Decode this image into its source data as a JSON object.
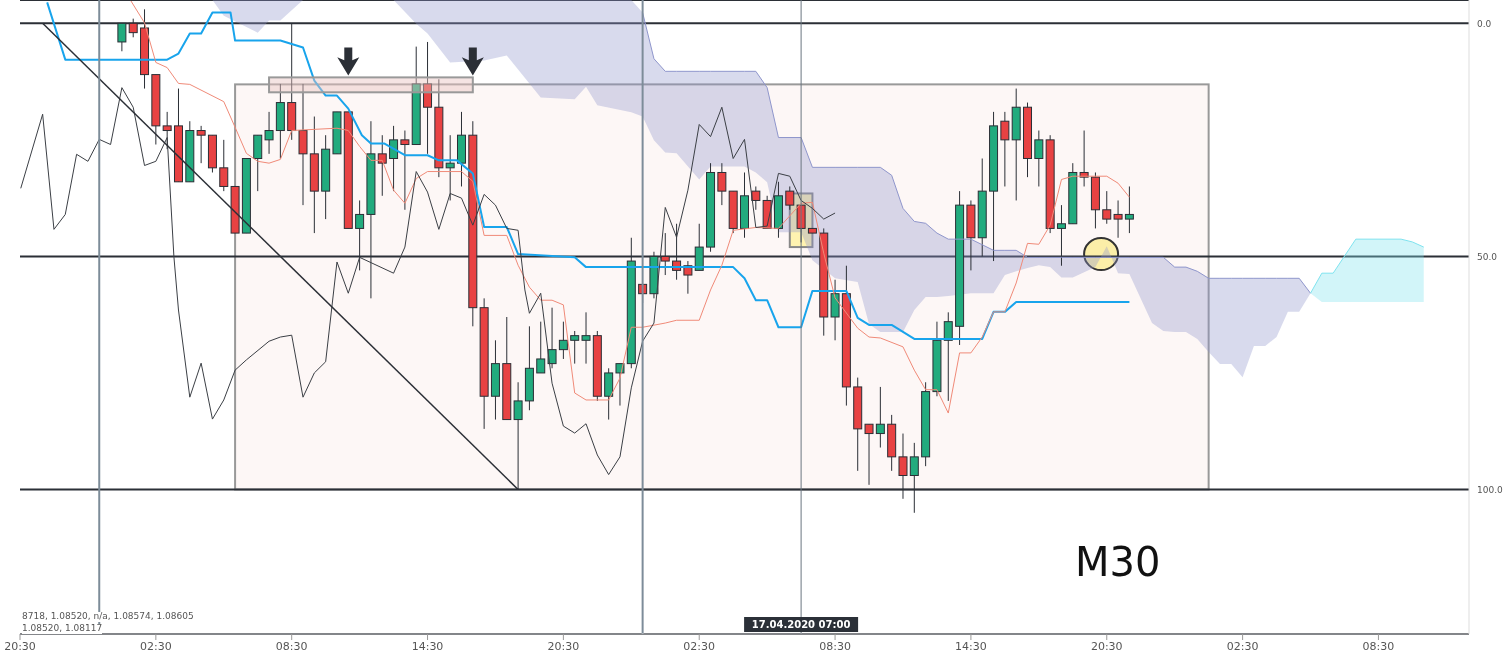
{
  "chart_data": {
    "type": "candlestick",
    "x": [
      "2020-04-16T01:00",
      "2020-04-16T01:30",
      "2020-04-16T02:00",
      "2020-04-16T02:30",
      "2020-04-16T03:00",
      "2020-04-16T03:30",
      "2020-04-16T04:00",
      "2020-04-16T04:30",
      "2020-04-16T05:00",
      "2020-04-16T05:30",
      "2020-04-16T06:00",
      "2020-04-16T06:30",
      "2020-04-16T07:00",
      "2020-04-16T07:30",
      "2020-04-16T08:00",
      "2020-04-16T08:30",
      "2020-04-16T09:00",
      "2020-04-16T09:30",
      "2020-04-16T10:00",
      "2020-04-16T10:30",
      "2020-04-16T11:00",
      "2020-04-16T11:30",
      "2020-04-16T12:00",
      "2020-04-16T12:30",
      "2020-04-16T13:00",
      "2020-04-16T13:30",
      "2020-04-16T14:00",
      "2020-04-16T14:30",
      "2020-04-16T15:00",
      "2020-04-16T15:30",
      "2020-04-16T16:00",
      "2020-04-16T16:30",
      "2020-04-16T17:00",
      "2020-04-16T17:30",
      "2020-04-16T18:00",
      "2020-04-16T18:30",
      "2020-04-16T19:00",
      "2020-04-16T19:30",
      "2020-04-16T20:00",
      "2020-04-16T20:30",
      "2020-04-16T21:00",
      "2020-04-16T21:30",
      "2020-04-16T22:00",
      "2020-04-16T22:30",
      "2020-04-16T23:00",
      "2020-04-16T23:30",
      "2020-04-17T00:00",
      "2020-04-17T00:30",
      "2020-04-17T01:00",
      "2020-04-17T01:30",
      "2020-04-17T02:00",
      "2020-04-17T02:30",
      "2020-04-17T03:00",
      "2020-04-17T03:30",
      "2020-04-17T04:00",
      "2020-04-17T04:30",
      "2020-04-17T05:00",
      "2020-04-17T05:30",
      "2020-04-17T06:00",
      "2020-04-17T06:30",
      "2020-04-17T07:00",
      "2020-04-17T07:30",
      "2020-04-17T08:00",
      "2020-04-17T08:30",
      "2020-04-17T09:00",
      "2020-04-17T09:30",
      "2020-04-17T10:00",
      "2020-04-17T10:30",
      "2020-04-17T11:00",
      "2020-04-17T11:30",
      "2020-04-17T12:00",
      "2020-04-17T12:30",
      "2020-04-17T13:00",
      "2020-04-17T13:30",
      "2020-04-17T14:00",
      "2020-04-17T14:30",
      "2020-04-17T15:00",
      "2020-04-17T15:30",
      "2020-04-17T16:00",
      "2020-04-17T16:30",
      "2020-04-17T17:00",
      "2020-04-17T17:30",
      "2020-04-17T18:00",
      "2020-04-17T18:30",
      "2020-04-17T19:00",
      "2020-04-17T19:30",
      "2020-04-17T20:00",
      "2020-04-17T20:30",
      "2020-04-17T21:00",
      "2020-04-17T21:30"
    ],
    "ohlc": [
      [
        4,
        6,
        0,
        0
      ],
      [
        0,
        3,
        -1,
        2
      ],
      [
        1,
        14,
        -3,
        11
      ],
      [
        11,
        26,
        11,
        22
      ],
      [
        22,
        27,
        19,
        23
      ],
      [
        22,
        34,
        14,
        34
      ],
      [
        34,
        34,
        21,
        23
      ],
      [
        23,
        30,
        22,
        24
      ],
      [
        24,
        32,
        24,
        31
      ],
      [
        31,
        36,
        25,
        35
      ],
      [
        35,
        45,
        35,
        45
      ],
      [
        45,
        45,
        29,
        29
      ],
      [
        29,
        36,
        24,
        24
      ],
      [
        25,
        28,
        19,
        23
      ],
      [
        23,
        29,
        13,
        17
      ],
      [
        17,
        25,
        0,
        23
      ],
      [
        23,
        39,
        13,
        28
      ],
      [
        28,
        45,
        20,
        36
      ],
      [
        36,
        42,
        24,
        27
      ],
      [
        28,
        28,
        19,
        19
      ],
      [
        19,
        44,
        19,
        44
      ],
      [
        44,
        53,
        38,
        41
      ],
      [
        41,
        59,
        21,
        28
      ],
      [
        28,
        37,
        24,
        30
      ],
      [
        29,
        36,
        22,
        25
      ],
      [
        25,
        40,
        23,
        26
      ],
      [
        26,
        26,
        5,
        13
      ],
      [
        13,
        28,
        4,
        18
      ],
      [
        18,
        33,
        12,
        31
      ],
      [
        31,
        38,
        24,
        30
      ],
      [
        30,
        35,
        19,
        24
      ],
      [
        24,
        65,
        21,
        61
      ],
      [
        61,
        87,
        59,
        80
      ],
      [
        80,
        85,
        68,
        73
      ],
      [
        73,
        85,
        63,
        85
      ],
      [
        85,
        100,
        77,
        81
      ],
      [
        81,
        83,
        65,
        74
      ],
      [
        75,
        75,
        64,
        72
      ],
      [
        73,
        74,
        61,
        70
      ],
      [
        70,
        72,
        64,
        68
      ],
      [
        68,
        73,
        66,
        67
      ],
      [
        68,
        73,
        62,
        67
      ],
      [
        67,
        81,
        66,
        80
      ],
      [
        80,
        85,
        74,
        75
      ],
      [
        75,
        82,
        73,
        73
      ],
      [
        73,
        74,
        46,
        51
      ],
      [
        56,
        60,
        56,
        58
      ],
      [
        58,
        59,
        49,
        50
      ],
      [
        50,
        54,
        45,
        51
      ],
      [
        51,
        55,
        43,
        53
      ],
      [
        52,
        58,
        51,
        54
      ],
      [
        53,
        53,
        43,
        48
      ],
      [
        48,
        49,
        30,
        32
      ],
      [
        32,
        39,
        30,
        36
      ],
      [
        36,
        45,
        36,
        44
      ],
      [
        44,
        46,
        32,
        37
      ],
      [
        36,
        40,
        35,
        38
      ],
      [
        38,
        44,
        37,
        44
      ],
      [
        44,
        46,
        34,
        37
      ],
      [
        36,
        40,
        35,
        39
      ],
      [
        39,
        47,
        39,
        44
      ],
      [
        44,
        45,
        44,
        45
      ],
      [
        45,
        67,
        44,
        63
      ],
      [
        63,
        68,
        55,
        58
      ],
      [
        58,
        82,
        52,
        78
      ],
      [
        78,
        96,
        76,
        87
      ],
      [
        86,
        99,
        86,
        88
      ],
      [
        88,
        91,
        78,
        86
      ],
      [
        86,
        96,
        84,
        93
      ],
      [
        93,
        102,
        88,
        97
      ],
      [
        97,
        105,
        90,
        93
      ],
      [
        93,
        95,
        77,
        79
      ],
      [
        79,
        80,
        64,
        68
      ],
      [
        68,
        81,
        62,
        64
      ],
      [
        65,
        69,
        36,
        39
      ],
      [
        39,
        53,
        38,
        46
      ],
      [
        46,
        50,
        29,
        36
      ],
      [
        36,
        51,
        19,
        22
      ],
      [
        21,
        35,
        19,
        25
      ],
      [
        25,
        38,
        14,
        18
      ],
      [
        18,
        33,
        17,
        29
      ],
      [
        29,
        35,
        23,
        25
      ],
      [
        25,
        45,
        24,
        44
      ],
      [
        44,
        52,
        39,
        43
      ],
      [
        43,
        43,
        30,
        32
      ],
      [
        32,
        35,
        23,
        33
      ],
      [
        33,
        44,
        32,
        40
      ],
      [
        40,
        43,
        36,
        42
      ],
      [
        41,
        46,
        38,
        42
      ],
      [
        42,
        45,
        35,
        41
      ]
    ],
    "colors": [
      "#22ab7e",
      "#e84243",
      "#e84243",
      "#e84243",
      "#e84243",
      "#e84243",
      "#22ab7e",
      "#e84243",
      "#e84243",
      "#e84243",
      "#e84243",
      "#22ab7e",
      "#22ab7e",
      "#22ab7e",
      "#22ab7e",
      "#e84243",
      "#e84243",
      "#e84243",
      "#22ab7e",
      "#22ab7e",
      "#e84243",
      "#22ab7e",
      "#22ab7e",
      "#e84243",
      "#22ab7e",
      "#e84243",
      "#22ab7e",
      "#e84243",
      "#e84243",
      "#22ab7e",
      "#22ab7e",
      "#e84243",
      "#e84243",
      "#22ab7e",
      "#e84243",
      "#22ab7e",
      "#22ab7e",
      "#22ab7e",
      "#22ab7e",
      "#22ab7e",
      "#22ab7e",
      "#22ab7e",
      "#e84243",
      "#22ab7e",
      "#22ab7e",
      "#22ab7e",
      "#e84243",
      "#22ab7e",
      "#e84243",
      "#e84243",
      "#e84243",
      "#22ab7e",
      "#22ab7e",
      "#e84243",
      "#e84243",
      "#22ab7e",
      "#e84243",
      "#e84243",
      "#22ab7e",
      "#e84243",
      "#e84243",
      "#e84243",
      "#e84243",
      "#22ab7e",
      "#e84243",
      "#e84243",
      "#e84243",
      "#22ab7e",
      "#e84243",
      "#e84243",
      "#22ab7e",
      "#22ab7e",
      "#22ab7e",
      "#22ab7e",
      "#22ab7e",
      "#e84243",
      "#22ab7e",
      "#22ab7e",
      "#e84243",
      "#22ab7e",
      "#e84243",
      "#22ab7e",
      "#e84243",
      "#22ab7e",
      "#22ab7e",
      "#e84243",
      "#e84243",
      "#e84243",
      "#e84243",
      "#22ab7e"
    ],
    "series": [
      {
        "type": "line",
        "color": "#8f96cc",
        "x": [
          "2020-04-16T05:00",
          "2020-04-16T05:30",
          "2020-04-16T07:00",
          "2020-04-16T07:30",
          "2020-04-16T08:00",
          "2020-04-16T09:00",
          "2020-04-16T13:00",
          "2020-04-16T14:00",
          "2020-04-16T14:30",
          "2020-04-16T15:30",
          "2020-04-16T17:00",
          "2020-04-16T18:00",
          "2020-04-16T19:00",
          "2020-04-16T19:30",
          "2020-04-16T21:00",
          "2020-04-16T21:30",
          "2020-04-16T22:00",
          "2020-04-16T23:30",
          "2020-04-17T00:00",
          "2020-04-17T00:30",
          "2020-04-17T01:00",
          "2020-04-17T01:30",
          "2020-04-17T02:30",
          "2020-04-17T03:00",
          "2020-04-17T04:30",
          "2020-04-17T05:00",
          "2020-04-17T05:30",
          "2020-04-17T06:00",
          "2020-04-17T07:00",
          "2020-04-17T07:30",
          "2020-04-17T08:30",
          "2020-04-17T09:30",
          "2020-04-17T10:00",
          "2020-04-17T10:30",
          "2020-04-17T11:00",
          "2020-04-17T11:30",
          "2020-04-17T12:00",
          "2020-04-17T12:30",
          "2020-04-17T13:00",
          "2020-04-17T13:30",
          "2020-04-17T14:30",
          "2020-04-17T15:30",
          "2020-04-17T16:00",
          "2020-04-17T16:30",
          "2020-04-17T17:00",
          "2020-04-17T17:30",
          "2020-04-17T18:00",
          "2020-04-17T18:30",
          "2020-04-17T19:00",
          "2020-04-17T20:00",
          "2020-04-17T20:30",
          "2020-04-17T21:00",
          "2020-04-17T21:30",
          "2020-04-17T22:30",
          "2020-04-17T23:00",
          "2020-04-17T23:30",
          "2020-04-18T00:00",
          "2020-04-18T00:30",
          "2020-04-18T01:00",
          "2020-04-18T01:30",
          "2020-04-18T02:00",
          "2020-04-18T02:30",
          "2020-04-18T03:00",
          "2020-04-18T03:30",
          "2020-04-18T04:00",
          "2020-04-18T04:30",
          "2020-04-18T05:00",
          "2020-04-18T05:30"
        ],
        "lower": [
          -5,
          -1.6,
          2,
          -0.6,
          -0.6,
          -5,
          -5,
          0.1,
          2.2,
          8.4,
          8,
          6.9,
          12.9,
          15.9,
          16.3,
          13.6,
          17.6,
          19.1,
          20,
          25.1,
          27.7,
          27.9,
          33.5,
          30.7,
          30.7,
          32,
          34.1,
          44.8,
          44.8,
          50.8,
          54.7,
          55.5,
          64.5,
          66.2,
          66.2,
          66.2,
          61.5,
          58.7,
          58.7,
          58.5,
          57.9,
          57.9,
          54,
          53.2,
          52.5,
          51.9,
          52.3,
          54.5,
          54.5,
          52.3,
          47.8,
          53.6,
          53.8,
          64.3,
          66,
          66.2,
          66.2,
          67.7,
          70.5,
          73.1,
          73.1,
          75.9,
          69.2,
          69.2,
          67.3,
          61.9,
          61.9,
          57.9
        ],
        "upper": [
          -5,
          -5,
          -5,
          -5,
          -5,
          -5,
          -5,
          -5,
          -5,
          -5,
          -5,
          -5,
          -5,
          -5,
          -5,
          -5,
          -5,
          -5,
          -2.3,
          7.6,
          10.3,
          10.3,
          10.3,
          10.3,
          10.3,
          10.3,
          13.8,
          24.5,
          24.5,
          30.9,
          30.9,
          30.9,
          30.9,
          30.9,
          32.6,
          39.7,
          42.5,
          42.9,
          45,
          46.3,
          46.3,
          48.7,
          48.7,
          48.7,
          50.2,
          50.2,
          50.2,
          50.2,
          50.2,
          50.2,
          50.2,
          50.2,
          50.2,
          50.2,
          50.2,
          52.3,
          52.3,
          53.2,
          54.7,
          54.7,
          54.7,
          54.7,
          54.7,
          54.7,
          54.7,
          54.7,
          54.7,
          57.9
        ],
        "values": [
          null,
          null,
          null,
          null,
          null,
          null,
          null,
          null,
          null,
          null,
          null,
          null,
          null,
          null,
          null,
          null,
          null,
          null,
          -2.3,
          7.6,
          10.3,
          10.3,
          10.3,
          10.3,
          10.3,
          10.3,
          13.8,
          24.5,
          24.5,
          30.9,
          30.9,
          30.9,
          30.9,
          30.9,
          32.6,
          39.7,
          42.5,
          42.9,
          45,
          46.3,
          46.3,
          48.7,
          48.7,
          48.7,
          50.2,
          50.2,
          50.2,
          50.2,
          50.2,
          50.2,
          50.2,
          50.2,
          50.2,
          50.2,
          50.2,
          52.3,
          52.3,
          53.2,
          54.7,
          54.7,
          54.7,
          54.7,
          54.7,
          54.7,
          54.7,
          54.7,
          54.7,
          57.9
        ]
      },
      {
        "type": "line",
        "color": "#7fe3ef",
        "x": [
          "2020-04-18T05:30",
          "2020-04-18T06:00",
          "2020-04-18T06:30",
          "2020-04-18T07:30",
          "2020-04-18T09:30",
          "2020-04-18T10:00",
          "2020-04-18T10:30"
        ],
        "lower": [
          57.9,
          59.8,
          59.8,
          59.8,
          59.8,
          59.8,
          59.8
        ],
        "upper": [
          57.9,
          53.6,
          53.6,
          46.3,
          46.3,
          46.9,
          48
        ],
        "values": [
          57.9,
          53.6,
          53.6,
          46.3,
          46.3,
          46.9,
          48
        ]
      },
      {
        "type": "line",
        "color": "#18a4ec",
        "x": [
          "2020-04-15T21:42",
          "2020-04-15T22:30",
          "2020-04-16T03:00",
          "2020-04-16T03:30",
          "2020-04-16T04:00",
          "2020-04-16T04:30",
          "2020-04-16T05:00",
          "2020-04-16T05:48",
          "2020-04-16T06:00",
          "2020-04-16T08:00",
          "2020-04-16T09:00",
          "2020-04-16T09:30",
          "2020-04-16T10:00",
          "2020-04-16T10:30",
          "2020-04-16T11:00",
          "2020-04-16T11:36",
          "2020-04-16T12:00",
          "2020-04-16T12:36",
          "2020-04-16T13:30",
          "2020-04-16T14:30",
          "2020-04-16T15:00",
          "2020-04-16T15:48",
          "2020-04-16T16:30",
          "2020-04-16T17:00",
          "2020-04-16T18:00",
          "2020-04-16T18:30",
          "2020-04-16T21:00",
          "2020-04-16T21:30",
          "2020-04-17T04:00",
          "2020-04-17T04:30",
          "2020-04-17T05:00",
          "2020-04-17T05:30",
          "2020-04-17T06:00",
          "2020-04-17T07:00",
          "2020-04-17T07:30",
          "2020-04-17T09:00",
          "2020-04-17T09:30",
          "2020-04-17T10:00",
          "2020-04-17T11:00",
          "2020-04-17T12:00",
          "2020-04-17T15:00",
          "2020-04-17T15:30",
          "2020-04-17T16:00",
          "2020-04-17T16:30",
          "2020-04-17T21:30"
        ],
        "values": [
          -4.5,
          7.8,
          7.8,
          6.5,
          2.2,
          2.2,
          -2.3,
          -2.3,
          3.7,
          3.7,
          5.2,
          12.3,
          15.5,
          15.5,
          18.3,
          24,
          25.8,
          25.8,
          28.3,
          28.3,
          29.4,
          29.4,
          32.2,
          43.7,
          43.7,
          49.5,
          50.2,
          52.3,
          52.3,
          54.7,
          59.4,
          59.4,
          65.2,
          65.2,
          57.4,
          57.4,
          63.2,
          64.7,
          64.7,
          67.7,
          67.7,
          61.9,
          61.9,
          59.8,
          59.8
        ]
      },
      {
        "type": "line",
        "color": "#f08a78",
        "x": [
          "2020-04-16T01:24",
          "2020-04-16T02:00",
          "2020-04-16T02:30",
          "2020-04-16T03:00",
          "2020-04-16T03:30",
          "2020-04-16T04:00",
          "2020-04-16T05:30",
          "2020-04-16T06:00",
          "2020-04-16T06:30",
          "2020-04-16T07:00",
          "2020-04-16T07:30",
          "2020-04-16T08:00",
          "2020-04-16T08:30",
          "2020-04-16T10:30",
          "2020-04-16T11:00",
          "2020-04-16T11:30",
          "2020-04-16T12:00",
          "2020-04-16T12:30",
          "2020-04-16T13:00",
          "2020-04-16T13:30",
          "2020-04-16T14:00",
          "2020-04-16T14:30",
          "2020-04-16T16:00",
          "2020-04-16T16:30",
          "2020-04-16T17:00",
          "2020-04-16T18:00",
          "2020-04-16T18:30",
          "2020-04-16T19:00",
          "2020-04-16T19:30",
          "2020-04-16T20:00",
          "2020-04-16T20:30",
          "2020-04-16T21:00",
          "2020-04-16T21:30",
          "2020-04-16T22:30",
          "2020-04-16T23:00",
          "2020-04-16T23:30",
          "2020-04-17T00:00",
          "2020-04-17T01:00",
          "2020-04-17T01:30",
          "2020-04-17T02:30",
          "2020-04-17T03:00",
          "2020-04-17T03:30",
          "2020-04-17T04:00",
          "2020-04-17T05:00",
          "2020-04-17T06:00",
          "2020-04-17T07:00",
          "2020-04-17T07:30",
          "2020-04-17T08:00",
          "2020-04-17T08:30",
          "2020-04-17T09:30",
          "2020-04-17T10:00",
          "2020-04-17T10:30",
          "2020-04-17T11:30",
          "2020-04-17T12:00",
          "2020-04-17T12:30",
          "2020-04-17T13:00",
          "2020-04-17T13:30",
          "2020-04-17T14:00",
          "2020-04-17T14:30",
          "2020-04-17T15:00",
          "2020-04-17T15:30",
          "2020-04-17T16:00",
          "2020-04-17T16:30",
          "2020-04-17T17:00",
          "2020-04-17T17:30",
          "2020-04-17T18:00",
          "2020-04-17T18:30",
          "2020-04-17T19:00",
          "2020-04-17T20:30",
          "2020-04-17T21:00",
          "2020-04-17T21:30"
        ],
        "values": [
          -4.8,
          -0.1,
          8.4,
          9.5,
          12.9,
          13.1,
          16.8,
          22.3,
          27.9,
          29.6,
          30,
          29.2,
          23,
          22.5,
          23,
          26.4,
          29.4,
          29.4,
          35.8,
          38.6,
          33.3,
          31.8,
          31.8,
          33.9,
          45.5,
          45.5,
          51.9,
          56.6,
          59.4,
          59.4,
          60.4,
          79.3,
          80.8,
          80.8,
          76.1,
          65.2,
          65.2,
          64.3,
          63.7,
          63.7,
          57.2,
          51.9,
          44.4,
          43.8,
          44,
          38.6,
          38.4,
          49.3,
          58.9,
          65.4,
          67.3,
          67.5,
          69.4,
          74.4,
          78.6,
          78.6,
          83.6,
          70.7,
          70.7,
          67.3,
          61.9,
          61.9,
          55.7,
          47.2,
          47.4,
          43.3,
          33.5,
          32.8,
          32.8,
          34.3,
          37.3
        ]
      },
      {
        "type": "line",
        "color": "#3b3f45",
        "x": [
          "2020-04-15T20:32",
          "2020-04-15T21:30",
          "2020-04-15T22:00",
          "2020-04-15T22:30",
          "2020-04-15T23:00",
          "2020-04-15T23:30",
          "2020-04-16T00:00",
          "2020-04-16T00:30",
          "2020-04-16T01:00",
          "2020-04-16T01:30",
          "2020-04-16T02:00",
          "2020-04-16T02:30",
          "2020-04-16T03:00",
          "2020-04-16T03:18",
          "2020-04-16T03:30",
          "2020-04-16T04:00",
          "2020-04-16T04:30",
          "2020-04-16T05:00",
          "2020-04-16T05:30",
          "2020-04-16T06:00",
          "2020-04-16T06:30",
          "2020-04-16T07:30",
          "2020-04-16T08:00",
          "2020-04-16T08:30",
          "2020-04-16T09:00",
          "2020-04-16T09:30",
          "2020-04-16T10:00",
          "2020-04-16T10:30",
          "2020-04-16T11:00",
          "2020-04-16T11:30",
          "2020-04-16T13:00",
          "2020-04-16T13:30",
          "2020-04-16T14:00",
          "2020-04-16T14:30",
          "2020-04-16T15:00",
          "2020-04-16T15:30",
          "2020-04-16T16:00",
          "2020-04-16T16:30",
          "2020-04-16T17:00",
          "2020-04-16T17:30",
          "2020-04-16T18:00",
          "2020-04-16T18:30",
          "2020-04-16T18:48",
          "2020-04-16T19:00",
          "2020-04-16T19:30",
          "2020-04-16T20:00",
          "2020-04-16T20:30",
          "2020-04-16T21:00",
          "2020-04-16T21:30",
          "2020-04-16T22:00",
          "2020-04-16T22:30",
          "2020-04-16T23:00",
          "2020-04-16T23:30",
          "2020-04-17T00:00",
          "2020-04-17T00:30",
          "2020-04-17T01:00",
          "2020-04-17T01:30",
          "2020-04-17T02:00",
          "2020-04-17T02:30",
          "2020-04-17T03:00",
          "2020-04-17T03:30",
          "2020-04-17T04:00",
          "2020-04-17T04:30",
          "2020-04-17T05:00",
          "2020-04-17T05:30",
          "2020-04-17T06:00",
          "2020-04-17T06:30",
          "2020-04-17T07:00",
          "2020-04-17T07:30",
          "2020-04-17T08:00",
          "2020-04-17T08:30"
        ],
        "values": [
          35.4,
          19.5,
          44.2,
          41,
          28.1,
          29.6,
          24.9,
          26,
          13.8,
          18,
          30.5,
          29.6,
          24.5,
          50.2,
          61.5,
          80.2,
          72.9,
          84.9,
          80.8,
          74.4,
          72.2,
          68.2,
          67.3,
          66.9,
          80.2,
          75,
          72.6,
          51.2,
          57.9,
          50.2,
          53.6,
          48,
          31.8,
          36.2,
          44.2,
          36.5,
          37.5,
          43.3,
          36.7,
          39,
          44,
          44.4,
          57.2,
          62.2,
          57.9,
          77.2,
          86.4,
          87.9,
          85.9,
          92.6,
          96.8,
          93,
          78.2,
          68.2,
          64.3,
          39.5,
          45.9,
          35.8,
          21.7,
          24.3,
          18,
          29,
          24.9,
          43.8,
          43.5,
          32.2,
          32.8,
          38,
          39.7,
          42,
          40.7
        ]
      },
      {
        "type": "line",
        "color": "#2b2f36",
        "x": [
          "2020-04-15T21:30",
          "2020-04-16T18:30"
        ],
        "values": [
          0,
          100
        ]
      }
    ],
    "xlim": [
      "2020-04-15T20:30",
      "2020-04-18T12:30"
    ],
    "ylim": [
      131,
      -5
    ],
    "xticks": [
      {
        "value": "2020-04-15T20:30",
        "label": "20:30"
      },
      {
        "value": "2020-04-16T02:30",
        "label": "02:30"
      },
      {
        "value": "2020-04-16T08:30",
        "label": "08:30"
      },
      {
        "value": "2020-04-16T14:30",
        "label": "14:30"
      },
      {
        "value": "2020-04-16T20:30",
        "label": "20:30"
      },
      {
        "value": "2020-04-17T02:30",
        "label": "02:30"
      },
      {
        "value": "2020-04-17T08:30",
        "label": "08:30"
      },
      {
        "value": "2020-04-17T14:30",
        "label": "14:30"
      },
      {
        "value": "2020-04-17T20:30",
        "label": "20:30"
      },
      {
        "value": "2020-04-18T02:30",
        "label": "02:30"
      },
      {
        "value": "2020-04-18T08:30",
        "label": "08:30"
      }
    ],
    "yticks": [
      {
        "value": 0,
        "label": "0.0"
      },
      {
        "value": 50,
        "label": "50.0"
      },
      {
        "value": 100,
        "label": "100.0"
      }
    ],
    "grid": "y",
    "ref_lines": [
      {
        "axis": "x",
        "value": "2020-04-16T00:00",
        "color": "#7d8c99"
      },
      {
        "axis": "x",
        "value": "2020-04-17T00:00",
        "color": "#7d8c99"
      },
      {
        "axis": "x",
        "value": "2020-04-17T07:00",
        "color": "#6b7680",
        "label": "17.04.2020 07:00"
      }
    ],
    "annotations": [
      "8718, 1.08520, n/a, 1.08574, 1.08605",
      "1.08520, 1.08117",
      "M30"
    ]
  }
}
